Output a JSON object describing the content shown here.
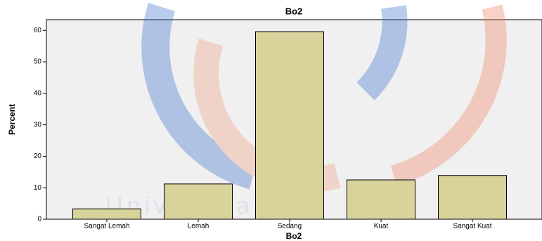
{
  "watermark": "Universitas",
  "chart_data": {
    "type": "bar",
    "title": "Bo2",
    "x_label": "Bo2",
    "y_label": "Percent",
    "categories": [
      "Sangat Lemah",
      "Lemah",
      "Sedang",
      "Kuat",
      "Sangat Kuat"
    ],
    "values": [
      3.3,
      11.2,
      59.6,
      12.5,
      13.9
    ],
    "color": "#d8d39b",
    "ylim": [
      0,
      63.4
    ],
    "yticks": [
      0,
      10,
      20,
      30,
      40,
      50,
      60
    ],
    "grid": false
  }
}
